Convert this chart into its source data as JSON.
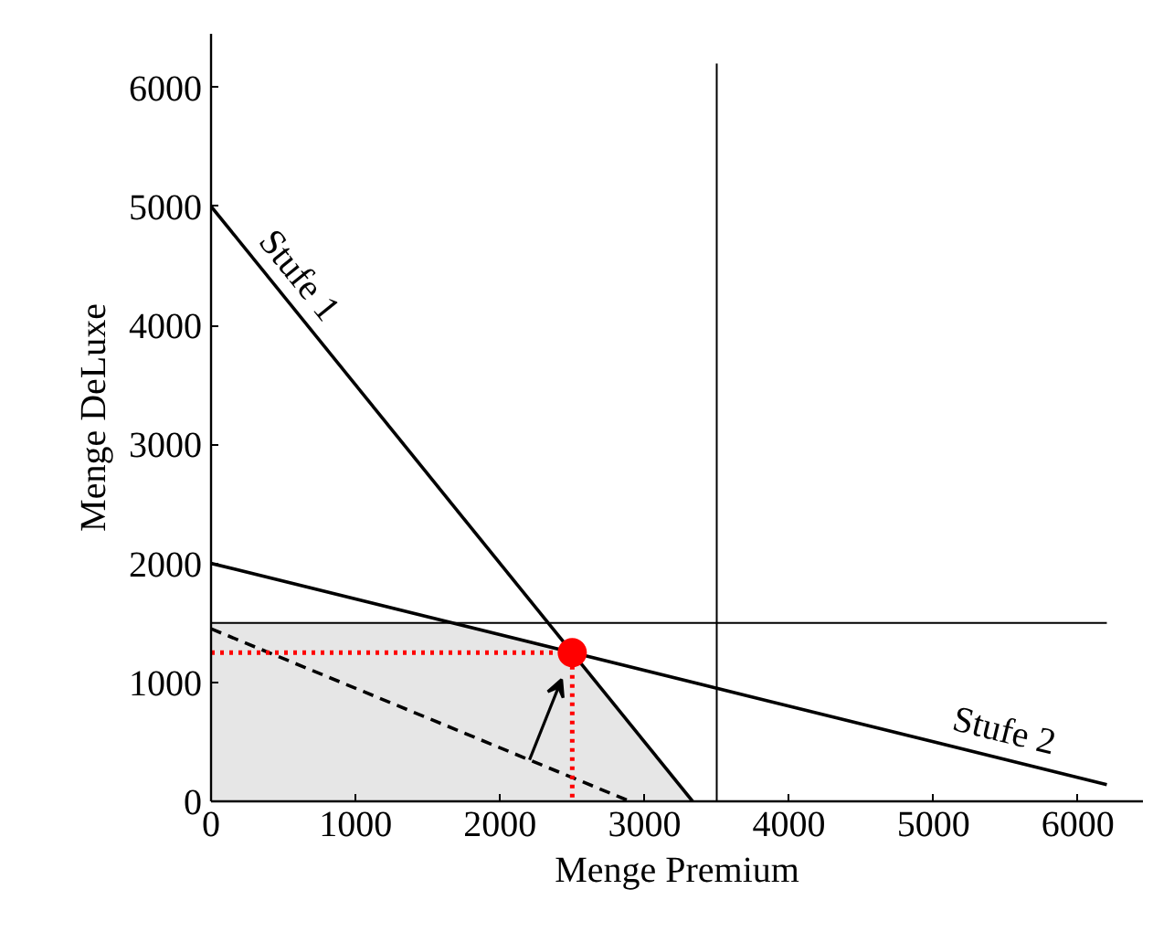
{
  "chart_data": {
    "type": "line",
    "xlabel": "Menge Premium",
    "ylabel": "Menge DeLuxe",
    "xlim": [
      0,
      6450
    ],
    "ylim": [
      0,
      6450
    ],
    "xticks": [
      0,
      1000,
      2000,
      3000,
      4000,
      5000,
      6000
    ],
    "yticks": [
      0,
      1000,
      2000,
      3000,
      4000,
      5000,
      6000
    ],
    "grid": false,
    "series": [
      {
        "type": "area",
        "color": "#e6e6e6",
        "x": [
          0,
          1667,
          2500,
          3333
        ],
        "values": [
          1500,
          1500,
          1250,
          0
        ]
      },
      {
        "name": "Stufe 1",
        "color": "#000000",
        "x": [
          0,
          3333
        ],
        "values": [
          5000,
          0
        ]
      },
      {
        "name": "Stufe 2",
        "color": "#000000",
        "x": [
          0,
          6200
        ],
        "values": [
          2000,
          140
        ]
      },
      {
        "color": "#000000",
        "x": [
          3500,
          3500
        ],
        "values": [
          0,
          6200
        ]
      },
      {
        "color": "#000000",
        "x": [
          0,
          6200
        ],
        "values": [
          1500,
          1500
        ]
      },
      {
        "color": "#000000",
        "line_style": "dashed",
        "x": [
          0,
          2900
        ],
        "values": [
          1450,
          0
        ]
      },
      {
        "color": "#ff0000",
        "line_style": "dotted",
        "x": [
          0,
          2500,
          2500
        ],
        "values": [
          1250,
          1250,
          0
        ]
      },
      {
        "type": "scatter",
        "marker": "circle",
        "color": "#ff0000",
        "x": [
          2500
        ],
        "values": [
          1250
        ]
      }
    ]
  }
}
